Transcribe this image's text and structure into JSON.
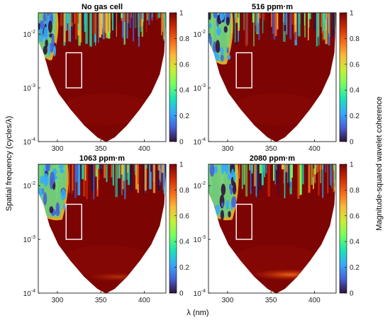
{
  "chart_data": {
    "type": "heatmap",
    "xlabel": "λ (nm)",
    "ylabel": "Spatial frequency (cycles/λ)",
    "colorbar_label": "Magnitude-squared wavelet coherence",
    "xlim": [
      278,
      425
    ],
    "ylim": [
      0.0001,
      0.025
    ],
    "yscale": "log",
    "xticks": [
      300,
      350,
      400
    ],
    "yticks": [
      {
        "value": 0.0001,
        "base": "10",
        "exp": "-4"
      },
      {
        "value": 0.001,
        "base": "10",
        "exp": "-3"
      },
      {
        "value": 0.01,
        "base": "10",
        "exp": "-2"
      }
    ],
    "clim": [
      0,
      1
    ],
    "colorbar_ticks": [
      "0",
      "0.2",
      "0.4",
      "0.6",
      "0.8",
      "1"
    ],
    "colormap": [
      "#30123b",
      "#4662d7",
      "#36aaf9",
      "#1ae4b6",
      "#72fe5e",
      "#c7ef34",
      "#faba39",
      "#f66b19",
      "#ca2a04",
      "#7a0403"
    ],
    "highlight_box": {
      "x": [
        310,
        328
      ],
      "y": [
        0.001,
        0.0045
      ],
      "color": "#ffffff"
    },
    "panels": [
      {
        "title": "No gas cell",
        "low_coherence_extent": 0.55
      },
      {
        "title": "516 ppm·m",
        "low_coherence_extent": 0.75
      },
      {
        "title": "1063 ppm·m",
        "low_coherence_extent": 1.0
      },
      {
        "title": "2080 ppm·m",
        "low_coherence_extent": 1.0
      }
    ]
  }
}
